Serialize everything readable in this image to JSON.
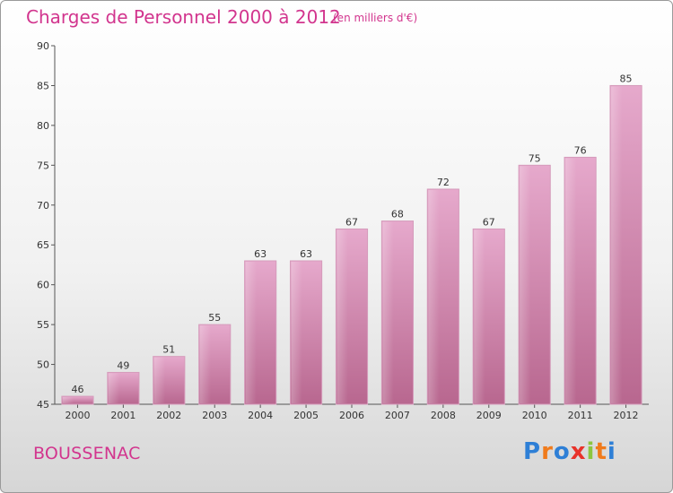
{
  "header": {
    "title": "Charges de Personnel 2000 à 2012",
    "subtitle": "(en milliers d'€)"
  },
  "footer": {
    "commune": "BOUSSENAC",
    "logo_letters": [
      "P",
      "r",
      "o",
      "x",
      "i",
      "t",
      "i"
    ],
    "logo_colors": [
      "#2e7fd6",
      "#f07b1c",
      "#2e7fd6",
      "#e8322a",
      "#8cc63f",
      "#f07b1c",
      "#2e7fd6"
    ]
  },
  "colors": {
    "bar": "#c26a9c",
    "bar_light": "#e2a6c9",
    "text_accent": "#d2358e"
  },
  "chart_data": {
    "type": "bar",
    "title": "Charges de Personnel 2000 à 2012",
    "subtitle": "(en milliers d'€)",
    "categories": [
      "2000",
      "2001",
      "2002",
      "2003",
      "2004",
      "2005",
      "2006",
      "2007",
      "2008",
      "2009",
      "2010",
      "2011",
      "2012"
    ],
    "values": [
      46,
      49,
      51,
      55,
      63,
      63,
      67,
      68,
      72,
      67,
      75,
      76,
      85
    ],
    "ylim": [
      45,
      90
    ],
    "yticks": [
      45,
      50,
      55,
      60,
      65,
      70,
      75,
      80,
      85,
      90
    ],
    "grid": false
  }
}
